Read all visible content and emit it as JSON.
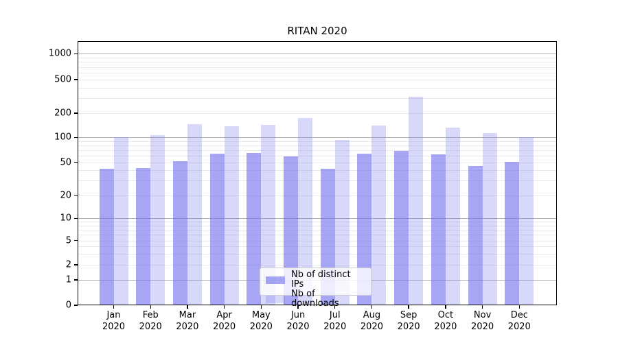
{
  "chart_data": {
    "type": "bar",
    "title": "RITAN 2020",
    "months": [
      "Jan",
      "Feb",
      "Mar",
      "Apr",
      "May",
      "Jun",
      "Jul",
      "Aug",
      "Sep",
      "Oct",
      "Nov",
      "Dec"
    ],
    "year": "2020",
    "series": [
      {
        "name": "Nb of distinct IPs",
        "color": "rgba(119,119,238,0.65)",
        "values": [
          42,
          43,
          52,
          64,
          65,
          59,
          42,
          64,
          69,
          63,
          45,
          51
        ]
      },
      {
        "name": "Nb of downloads",
        "color": "rgba(119,119,238,0.29)",
        "values": [
          101,
          107,
          146,
          138,
          144,
          173,
          93,
          141,
          315,
          132,
          113,
          101
        ]
      }
    ],
    "yticks": [
      0,
      1,
      2,
      5,
      10,
      20,
      50,
      100,
      200,
      500,
      1000
    ],
    "yscale": "symlog",
    "ylim": [
      0,
      1400
    ],
    "xlabel": "",
    "ylabel": "",
    "grid": true,
    "legend_position": "lower center"
  },
  "colors": {
    "grid_major": "#b0b0b0",
    "grid_minor": "#e9e9e9",
    "spine": "#000000",
    "legend_border": "#cccccc",
    "background": "#ffffff"
  }
}
